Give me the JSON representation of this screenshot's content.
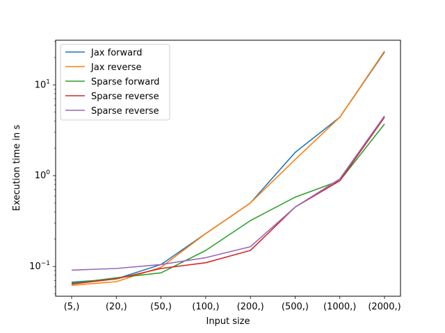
{
  "chart_data": {
    "type": "line",
    "categories": [
      "(5,)",
      "(20,)",
      "(50,)",
      "(100,)",
      "(200,)",
      "(500,)",
      "(1000,)",
      "(2000,)"
    ],
    "xlabel": "Input size",
    "ylabel": "Execution time in s",
    "yscale": "log",
    "ylim": [
      0.047,
      31
    ],
    "grid": false,
    "legend_position": "top-left",
    "series": [
      {
        "name": "Jax forward",
        "color": "#1f77b4",
        "values": [
          0.067,
          0.073,
          0.105,
          0.23,
          0.5,
          1.8,
          4.4,
          23
        ]
      },
      {
        "name": "Jax reverse",
        "color": "#ff7f0e",
        "values": [
          0.062,
          0.068,
          0.098,
          0.23,
          0.5,
          1.5,
          4.4,
          23.5
        ]
      },
      {
        "name": "Sparse forward",
        "color": "#2ca02c",
        "values": [
          0.065,
          0.075,
          0.085,
          0.15,
          0.32,
          0.58,
          0.88,
          3.7
        ]
      },
      {
        "name": "Sparse reverse",
        "color": "#d62728",
        "values": [
          0.064,
          0.073,
          0.095,
          0.11,
          0.15,
          0.45,
          0.88,
          4.4
        ]
      },
      {
        "name": "Sparse reverse",
        "color": "#9467bd",
        "values": [
          0.091,
          0.095,
          0.105,
          0.125,
          0.165,
          0.45,
          0.92,
          4.55
        ]
      }
    ],
    "y_ticks": [
      {
        "base": "10",
        "exp": "−1",
        "value": 0.1
      },
      {
        "base": "10",
        "exp": "0",
        "value": 1
      },
      {
        "base": "10",
        "exp": "1",
        "value": 10
      }
    ]
  }
}
